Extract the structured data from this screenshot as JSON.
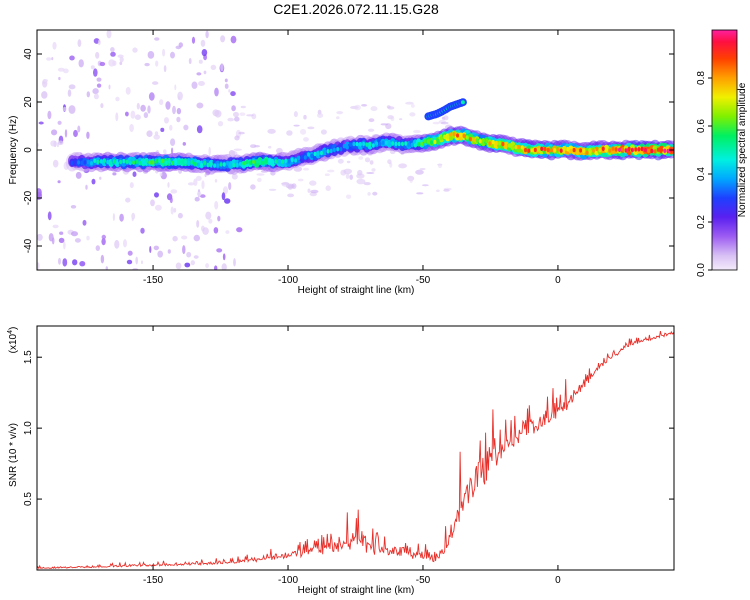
{
  "title": "C2E1.2026.072.11.15.G28",
  "chart_data": [
    {
      "type": "heatmap",
      "xlabel": "Height of straight line (km)",
      "ylabel": "Frequency (Hz)",
      "xlim": [
        -193,
        43
      ],
      "ylim": [
        -50,
        50
      ],
      "xticks": [
        -150,
        -100,
        -50,
        0
      ],
      "yticks": [
        -40,
        -20,
        0,
        20,
        40
      ],
      "colorbar": {
        "label": "Normalized spectral amplitude",
        "range": [
          0,
          1
        ],
        "ticks": [
          0.0,
          0.2,
          0.4,
          0.6,
          0.8
        ],
        "tick_labels": [
          "0.0",
          "0.2",
          "0.4",
          "0.6",
          "0.8"
        ]
      },
      "ridge": {
        "x": [
          -180,
          -170,
          -160,
          -150,
          -140,
          -130,
          -120,
          -110,
          -100,
          -95,
          -90,
          -85,
          -80,
          -75,
          -70,
          -65,
          -60,
          -55,
          -50,
          -45,
          -40,
          -35,
          -30,
          -25,
          -20,
          -15,
          -10,
          -5,
          0,
          5,
          10,
          15,
          20,
          30,
          43
        ],
        "frequency": [
          -5,
          -5,
          -5,
          -5,
          -5,
          -6,
          -6,
          -5,
          -5,
          -3,
          -2,
          0,
          1,
          2,
          2,
          3,
          3,
          2,
          3,
          4,
          6,
          6,
          4,
          3,
          2,
          1,
          0,
          0,
          0,
          0,
          -1,
          0,
          0,
          0,
          0
        ],
        "amplitude": [
          0.3,
          0.5,
          0.55,
          0.6,
          0.6,
          0.5,
          0.5,
          0.65,
          0.45,
          0.4,
          0.45,
          0.5,
          0.4,
          0.45,
          0.5,
          0.45,
          0.5,
          0.45,
          0.6,
          0.75,
          0.85,
          0.85,
          0.8,
          0.8,
          0.9,
          0.85,
          0.9,
          0.9,
          0.9,
          0.9,
          0.9,
          0.9,
          1.0,
          1.0,
          1.0
        ]
      },
      "branch": {
        "x": [
          -48,
          -45,
          -43,
          -40,
          -35
        ],
        "frequency": [
          14,
          15,
          16,
          18,
          20
        ]
      }
    },
    {
      "type": "line",
      "xlabel": "Height of straight line (km)",
      "ylabel": "SNR (10 * v/v)",
      "y_multiplier_label": "(x10",
      "y_multiplier_exp": "4",
      "y_multiplier_close": ")",
      "xlim": [
        -193,
        43
      ],
      "ylim": [
        0,
        1.72
      ],
      "xticks": [
        -150,
        -100,
        -50,
        0
      ],
      "yticks": [
        0.5,
        1.0,
        1.5
      ],
      "ytick_labels": [
        "0.5",
        "1.0",
        "1.5"
      ],
      "color": "#e8302a",
      "envelope": {
        "x": [
          -193,
          -170,
          -150,
          -130,
          -120,
          -110,
          -100,
          -90,
          -80,
          -75,
          -70,
          -65,
          -60,
          -55,
          -50,
          -45,
          -40,
          -38,
          -35,
          -32,
          -30,
          -28,
          -25,
          -20,
          -15,
          -10,
          -5,
          0,
          5,
          10,
          15,
          20,
          25,
          30,
          35,
          40,
          43
        ],
        "base": [
          0.01,
          0.02,
          0.03,
          0.04,
          0.05,
          0.07,
          0.09,
          0.12,
          0.15,
          0.18,
          0.14,
          0.12,
          0.1,
          0.09,
          0.08,
          0.06,
          0.15,
          0.3,
          0.45,
          0.52,
          0.6,
          0.62,
          0.72,
          0.82,
          0.9,
          0.98,
          1.02,
          1.08,
          1.18,
          1.3,
          1.42,
          1.5,
          1.56,
          1.6,
          1.63,
          1.65,
          1.66
        ],
        "amplitude": [
          0.02,
          0.03,
          0.04,
          0.05,
          0.06,
          0.09,
          0.12,
          0.2,
          0.3,
          0.4,
          0.35,
          0.3,
          0.22,
          0.2,
          0.18,
          0.16,
          0.35,
          0.45,
          0.5,
          0.55,
          0.6,
          0.55,
          0.5,
          0.42,
          0.35,
          0.3,
          0.28,
          0.26,
          0.22,
          0.18,
          0.14,
          0.12,
          0.1,
          0.08,
          0.06,
          0.05,
          0.05
        ]
      }
    }
  ]
}
